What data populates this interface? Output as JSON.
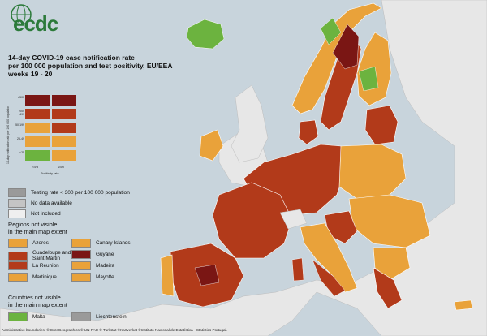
{
  "colors": {
    "sea": "#c8d4dc",
    "land_outside": "#e7e7e7",
    "dark_red": "#7a1614",
    "red": "#b23a1a",
    "orange": "#e9a23a",
    "green": "#6cb33f",
    "grey": "#9a9a9a",
    "white": "#f2f2f2"
  },
  "logo": {
    "text": "ecdc",
    "icon": "globe-icon"
  },
  "title": {
    "line1": "14-day COVID-19 case notification rate",
    "line2": "per 100 000 population and test positivity, EU/EEA",
    "line3": "weeks 19 - 20"
  },
  "matrix": {
    "y_axis_label": "14-day notification rate per 100 000 population",
    "y_ticks": [
      "≥500",
      "200-499",
      "50-199",
      "25-49",
      "<25"
    ],
    "x_ticks": [
      "<4%",
      "≥4%"
    ],
    "x_axis_label": "Positivity rate",
    "cells": [
      [
        "dark_red",
        "dark_red"
      ],
      [
        "red",
        "red"
      ],
      [
        "orange",
        "red"
      ],
      [
        "orange",
        "orange"
      ],
      [
        "green",
        "orange"
      ]
    ]
  },
  "legend": {
    "testing_rate": "Testing rate < 300 per 100 000 population",
    "no_data": "No data available",
    "not_included": "Not included"
  },
  "regions": {
    "title_line1": "Regions not visible",
    "title_line2": "in the main map extent",
    "items": [
      {
        "label": "Azores",
        "color": "orange"
      },
      {
        "label": "Canary Islands",
        "color": "orange"
      },
      {
        "label": "Guadeloupe and Saint Martin",
        "color": "red"
      },
      {
        "label": "Guyane",
        "color": "dark_red"
      },
      {
        "label": "La Reunion",
        "color": "red"
      },
      {
        "label": "Madeira",
        "color": "orange"
      },
      {
        "label": "Martinique",
        "color": "orange"
      },
      {
        "label": "Mayotte",
        "color": "orange"
      }
    ]
  },
  "countries": {
    "title_line1": "Countries not visible",
    "title_line2": "in the main map extent",
    "items": [
      {
        "label": "Malta",
        "color": "green"
      },
      {
        "label": "Liechtenstein",
        "color": "grey"
      }
    ]
  },
  "footer": "Administrative boundaries: © EuroGeographics © UN-FAO © Turkstat ©Kartverket ©Instituto Nacional de Estatística - Statistics Portugal."
}
